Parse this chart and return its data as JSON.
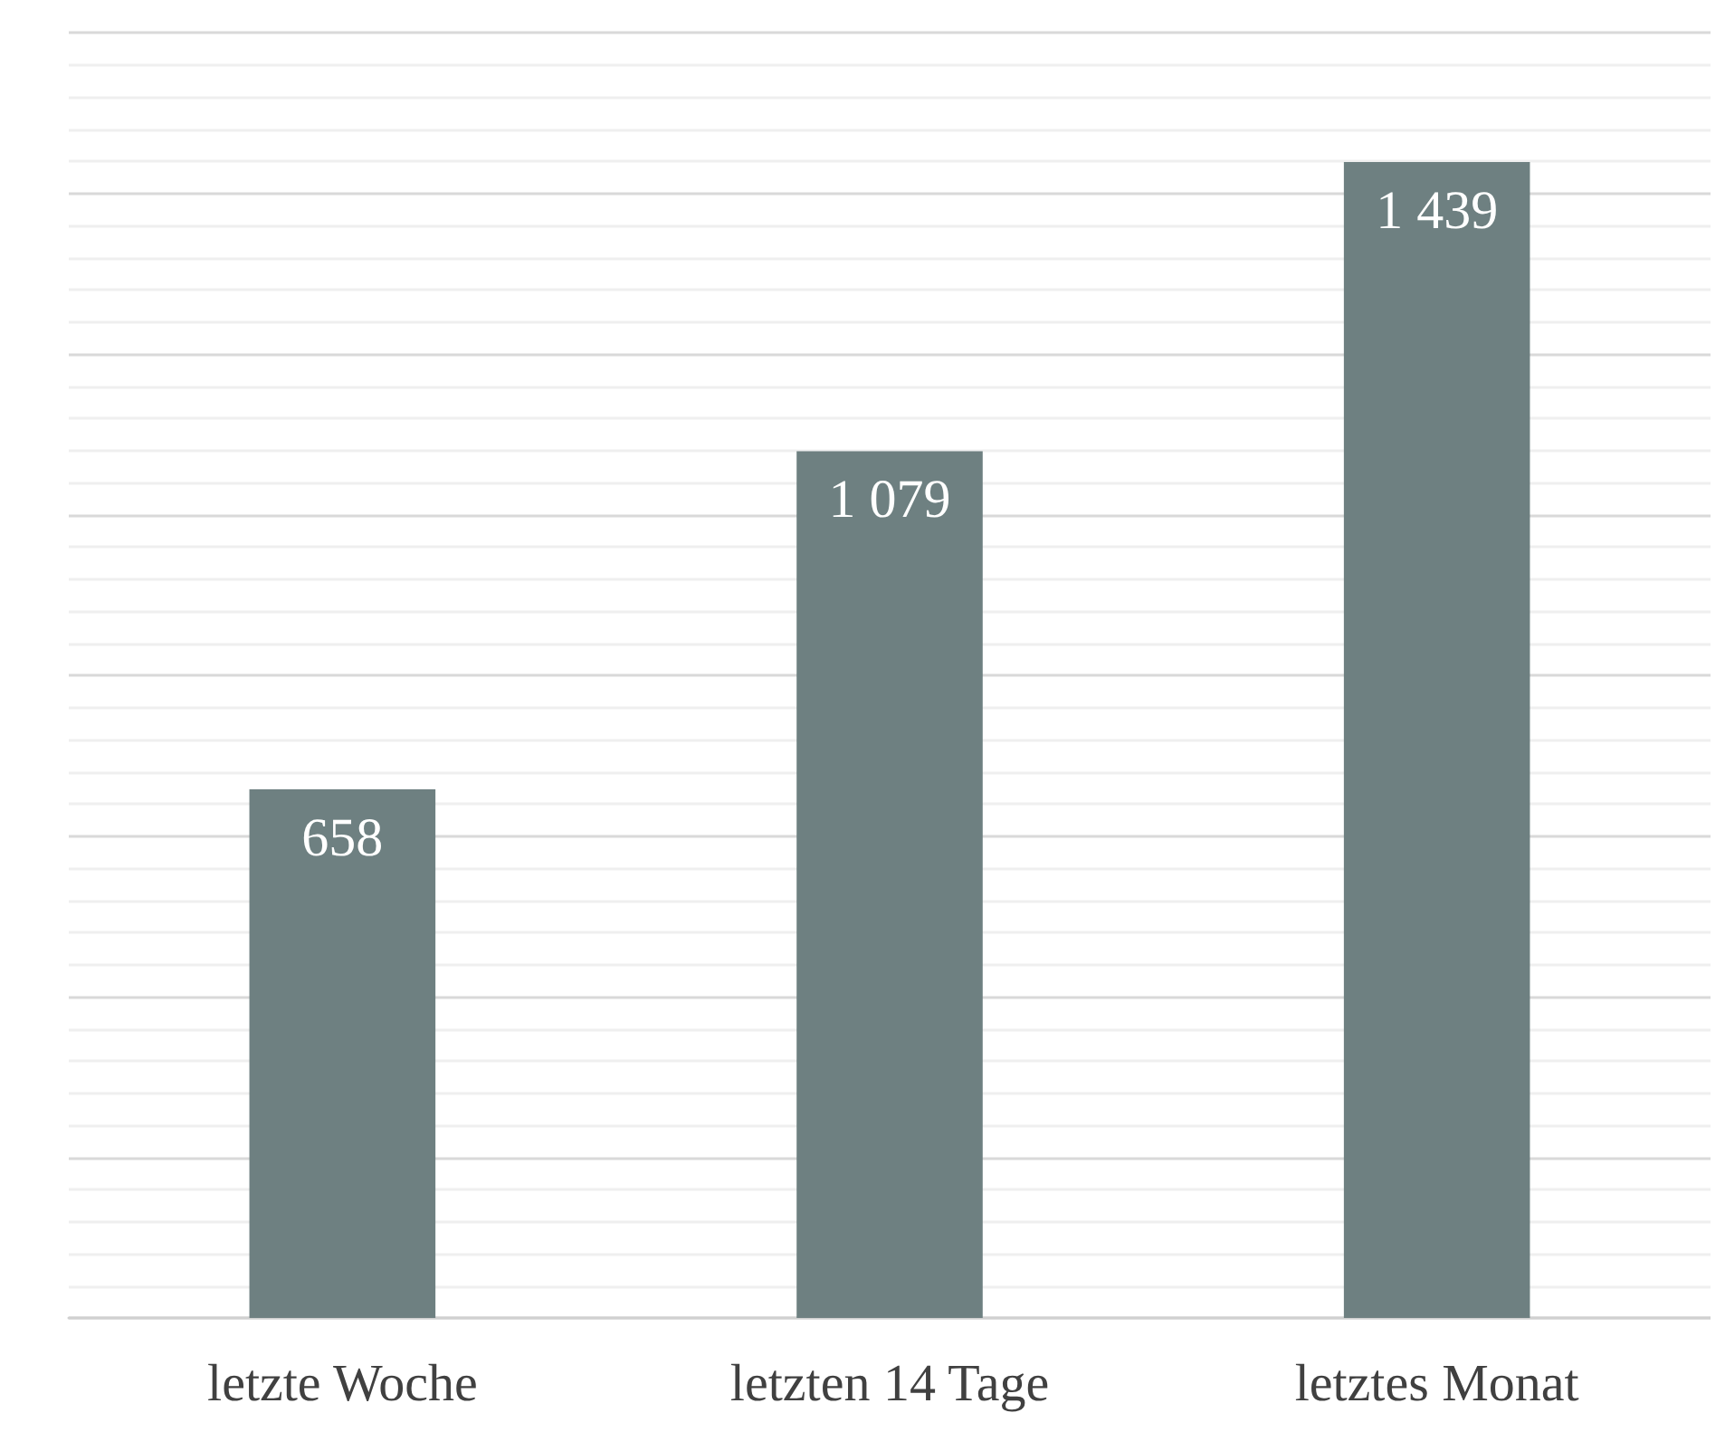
{
  "chart_data": {
    "type": "bar",
    "categories": [
      "letzte Woche",
      "letzten 14 Tage",
      "letztes Monat"
    ],
    "values": [
      658,
      1079,
      1439
    ],
    "value_labels": [
      "658",
      "1 079",
      "1 439"
    ],
    "color": "#6e8081",
    "ylim": [
      0,
      1600
    ],
    "yticks": [
      {
        "value": 0,
        "label": null
      },
      {
        "value": 200,
        "label": null
      },
      {
        "value": 400,
        "label": null
      },
      {
        "value": 600,
        "label": null
      },
      {
        "value": 800,
        "label": null
      },
      {
        "value": 1000,
        "label": null
      },
      {
        "value": 1200,
        "label": null
      },
      {
        "value": 1400,
        "label": null
      },
      {
        "value": 1600,
        "label": null
      }
    ],
    "grid": true,
    "tick_labels": "x"
  }
}
